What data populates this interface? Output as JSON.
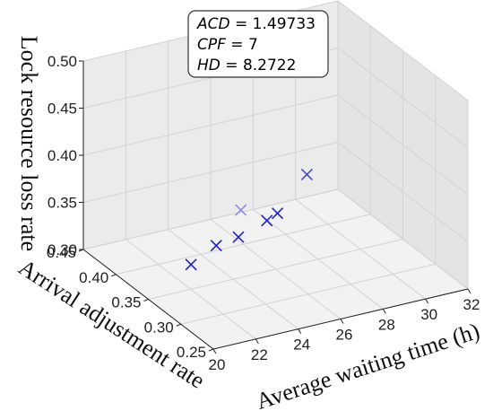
{
  "chart_data": {
    "type": "scatter",
    "projection": "3d",
    "xlabel": "Average waiting time (h)",
    "ylabel": "Arrival adjustment rate",
    "zlabel": "Lock resource loss rate",
    "x_ticks": [
      "20",
      "22",
      "24",
      "26",
      "28",
      "30",
      "32"
    ],
    "y_ticks": [
      "0.25",
      "0.30",
      "0.35",
      "0.40",
      "0.45"
    ],
    "z_ticks": [
      "0.30",
      "0.35",
      "0.40",
      "0.45",
      "0.50"
    ],
    "xlim": [
      20,
      32
    ],
    "ylim": [
      0.25,
      0.45
    ],
    "zlim": [
      0.3,
      0.5
    ],
    "grid": true,
    "marker": "x",
    "marker_color": "#1f1fd1",
    "points": [
      {
        "x": 21.4,
        "y": 0.33,
        "z": 0.34
      },
      {
        "x": 23.2,
        "y": 0.35,
        "z": 0.34
      },
      {
        "x": 24.4,
        "y": 0.355,
        "z": 0.34
      },
      {
        "x": 26.2,
        "y": 0.41,
        "z": 0.33
      },
      {
        "x": 26.2,
        "y": 0.37,
        "z": 0.34
      },
      {
        "x": 26.7,
        "y": 0.37,
        "z": 0.345
      },
      {
        "x": 28.7,
        "y": 0.39,
        "z": 0.365
      }
    ],
    "annotation": {
      "lines": [
        {
          "name": "ACD",
          "value": "1.49733"
        },
        {
          "name": "CPF",
          "value": "7"
        },
        {
          "name": "HD",
          "value": "8.2722"
        }
      ]
    }
  }
}
